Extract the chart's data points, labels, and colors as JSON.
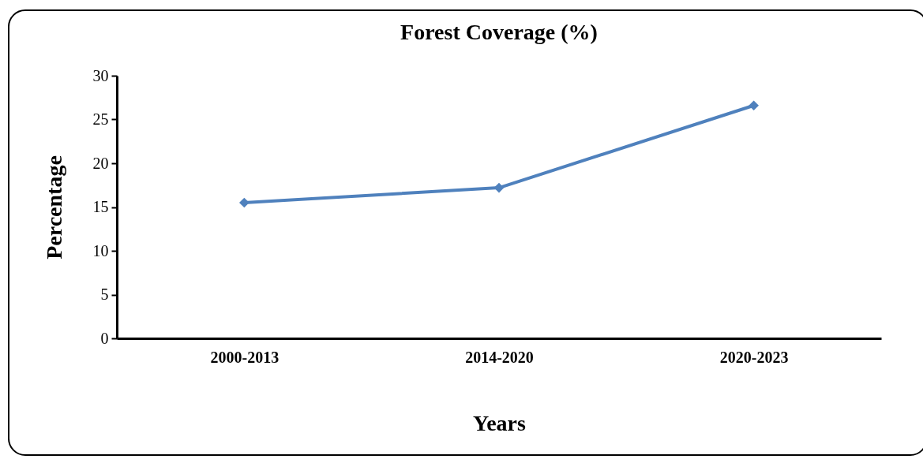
{
  "chart_data": {
    "type": "line",
    "title": "Forest Coverage (%)",
    "xlabel": "Years",
    "ylabel": "Percentage",
    "categories": [
      "2000-2013",
      "2014-2020",
      "2020-2023"
    ],
    "series": [
      {
        "color": "#4f81bd",
        "values": [
          15.5,
          17.2,
          26.6
        ]
      }
    ],
    "ylim": [
      0,
      30
    ],
    "yticks": [
      0,
      5,
      10,
      15,
      20,
      25,
      30
    ],
    "grid": false,
    "marker": "diamond",
    "line_style": "solid"
  }
}
